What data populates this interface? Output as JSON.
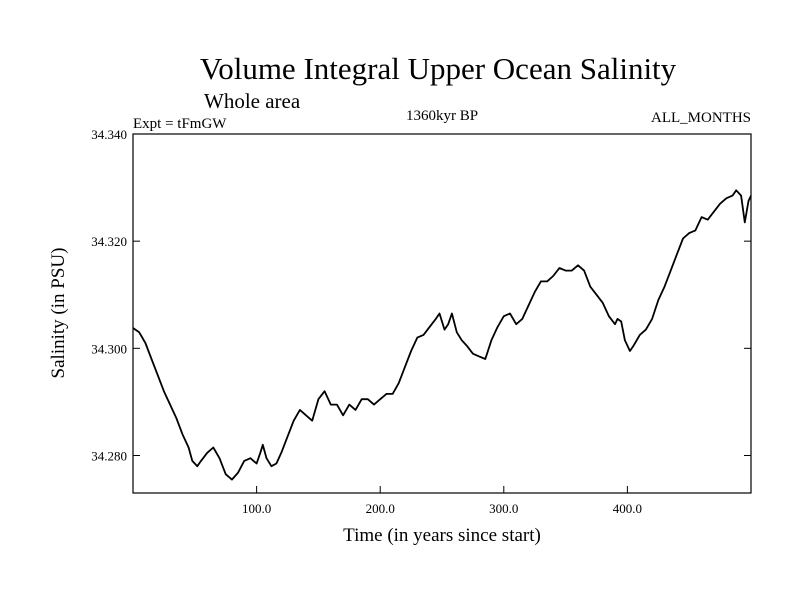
{
  "chart_data": {
    "type": "line",
    "title": "Volume Integral Upper Ocean Salinity",
    "subtitle": "Whole area",
    "experiment_label": "Expt = tFmGW",
    "period_label": "1360kyr BP",
    "months_label": "ALL_MONTHS",
    "xlabel": "Time (in years since start)",
    "ylabel": "Salinity (in PSU)",
    "xlim": [
      0,
      500
    ],
    "ylim": [
      34.273,
      34.34
    ],
    "x_ticks": [
      {
        "value": 100,
        "label": "100.0"
      },
      {
        "value": 200,
        "label": "200.0"
      },
      {
        "value": 300,
        "label": "300.0"
      },
      {
        "value": 400,
        "label": "400.0"
      }
    ],
    "y_ticks": [
      {
        "value": 34.28,
        "label": "34.280"
      },
      {
        "value": 34.3,
        "label": "34.300"
      },
      {
        "value": 34.32,
        "label": "34.320"
      },
      {
        "value": 34.34,
        "label": "34.340"
      }
    ],
    "series": [
      {
        "name": "salinity",
        "points": [
          [
            0,
            34.3038
          ],
          [
            5,
            34.303
          ],
          [
            10,
            34.301
          ],
          [
            15,
            34.298
          ],
          [
            20,
            34.295
          ],
          [
            25,
            34.292
          ],
          [
            30,
            34.2895
          ],
          [
            35,
            34.287
          ],
          [
            40,
            34.284
          ],
          [
            45,
            34.2815
          ],
          [
            48,
            34.279
          ],
          [
            52,
            34.278
          ],
          [
            55,
            34.279
          ],
          [
            60,
            34.2805
          ],
          [
            65,
            34.2815
          ],
          [
            70,
            34.2795
          ],
          [
            75,
            34.2765
          ],
          [
            80,
            34.2755
          ],
          [
            85,
            34.2768
          ],
          [
            90,
            34.279
          ],
          [
            95,
            34.2795
          ],
          [
            100,
            34.2785
          ],
          [
            103,
            34.2805
          ],
          [
            105,
            34.282
          ],
          [
            108,
            34.2795
          ],
          [
            112,
            34.278
          ],
          [
            116,
            34.2785
          ],
          [
            120,
            34.2805
          ],
          [
            125,
            34.2835
          ],
          [
            130,
            34.2865
          ],
          [
            135,
            34.2885
          ],
          [
            140,
            34.2875
          ],
          [
            145,
            34.2865
          ],
          [
            150,
            34.2905
          ],
          [
            155,
            34.292
          ],
          [
            160,
            34.2895
          ],
          [
            165,
            34.2895
          ],
          [
            170,
            34.2875
          ],
          [
            175,
            34.2895
          ],
          [
            180,
            34.2885
          ],
          [
            185,
            34.2905
          ],
          [
            190,
            34.2905
          ],
          [
            195,
            34.2895
          ],
          [
            200,
            34.2905
          ],
          [
            205,
            34.2915
          ],
          [
            210,
            34.2915
          ],
          [
            215,
            34.2935
          ],
          [
            220,
            34.2965
          ],
          [
            225,
            34.2995
          ],
          [
            230,
            34.302
          ],
          [
            235,
            34.3025
          ],
          [
            240,
            34.304
          ],
          [
            245,
            34.3055
          ],
          [
            248,
            34.3065
          ],
          [
            252,
            34.3035
          ],
          [
            255,
            34.3045
          ],
          [
            258,
            34.3065
          ],
          [
            262,
            34.303
          ],
          [
            266,
            34.3015
          ],
          [
            270,
            34.3005
          ],
          [
            275,
            34.299
          ],
          [
            280,
            34.2985
          ],
          [
            285,
            34.298
          ],
          [
            290,
            34.3015
          ],
          [
            295,
            34.304
          ],
          [
            300,
            34.306
          ],
          [
            305,
            34.3065
          ],
          [
            310,
            34.3045
          ],
          [
            315,
            34.3055
          ],
          [
            320,
            34.308
          ],
          [
            325,
            34.3105
          ],
          [
            330,
            34.3125
          ],
          [
            335,
            34.3125
          ],
          [
            340,
            34.3135
          ],
          [
            345,
            34.315
          ],
          [
            350,
            34.3145
          ],
          [
            355,
            34.3145
          ],
          [
            360,
            34.3155
          ],
          [
            365,
            34.3145
          ],
          [
            370,
            34.3115
          ],
          [
            375,
            34.31
          ],
          [
            380,
            34.3085
          ],
          [
            385,
            34.306
          ],
          [
            390,
            34.3045
          ],
          [
            392,
            34.3055
          ],
          [
            395,
            34.305
          ],
          [
            398,
            34.3015
          ],
          [
            402,
            34.2995
          ],
          [
            405,
            34.3005
          ],
          [
            410,
            34.3025
          ],
          [
            415,
            34.3035
          ],
          [
            420,
            34.3055
          ],
          [
            425,
            34.309
          ],
          [
            430,
            34.3115
          ],
          [
            435,
            34.3145
          ],
          [
            440,
            34.3175
          ],
          [
            445,
            34.3205
          ],
          [
            450,
            34.3215
          ],
          [
            455,
            34.322
          ],
          [
            460,
            34.3245
          ],
          [
            465,
            34.324
          ],
          [
            470,
            34.3255
          ],
          [
            475,
            34.327
          ],
          [
            480,
            34.328
          ],
          [
            485,
            34.3285
          ],
          [
            488,
            34.3295
          ],
          [
            492,
            34.3285
          ],
          [
            495,
            34.3235
          ],
          [
            498,
            34.3275
          ],
          [
            500,
            34.3285
          ]
        ]
      }
    ]
  }
}
